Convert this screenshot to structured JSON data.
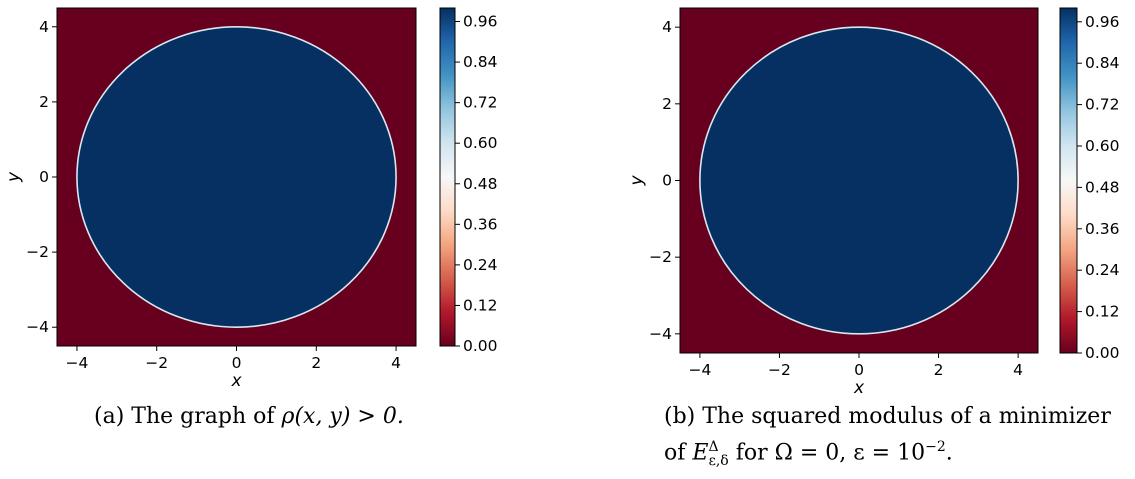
{
  "chart_data": [
    {
      "type": "heatmap",
      "title": "",
      "xlabel": "x",
      "ylabel": "y",
      "xlim": [
        -4.5,
        4.5
      ],
      "ylim": [
        -4.5,
        4.5
      ],
      "xticks": [
        "−4",
        "−2",
        "0",
        "2",
        "4"
      ],
      "yticks": [
        "4",
        "2",
        "0",
        "−2",
        "−4"
      ],
      "field": {
        "inside_radius": 4.0,
        "value_inside": 1.0,
        "value_outside": 0.0,
        "center": [
          0,
          0
        ]
      },
      "colorbar": {
        "colormap": "RdBu",
        "ticks": [
          "0.96",
          "0.84",
          "0.72",
          "0.60",
          "0.48",
          "0.36",
          "0.24",
          "0.12",
          "0.00"
        ],
        "range": [
          0.0,
          1.0
        ]
      },
      "caption_parts": {
        "tag": "(a)",
        "text": "The graph of",
        "math": "ρ(x, y) > 0."
      }
    },
    {
      "type": "heatmap",
      "title": "",
      "xlabel": "x",
      "ylabel": "y",
      "xlim": [
        -4.5,
        4.5
      ],
      "ylim": [
        -4.5,
        4.5
      ],
      "xticks": [
        "−4",
        "−2",
        "0",
        "2",
        "4"
      ],
      "yticks": [
        "4",
        "2",
        "0",
        "−2",
        "−4"
      ],
      "field": {
        "inside_radius": 4.0,
        "value_inside": 1.0,
        "value_outside": 0.0,
        "center": [
          0,
          0
        ]
      },
      "colorbar": {
        "colormap": "RdBu",
        "ticks": [
          "0.96",
          "0.84",
          "0.72",
          "0.60",
          "0.48",
          "0.36",
          "0.24",
          "0.12",
          "0.00"
        ],
        "range": [
          0.0,
          1.0
        ]
      },
      "caption_parts": {
        "tag": "(b)",
        "line1": "The squared modulus of a minimizer",
        "of": "of",
        "E": "E",
        "sup": "Δ",
        "sub": "ε,δ",
        "for": "for",
        "omega": "Ω = 0,",
        "eps": "ε = 10",
        "exp": "−2",
        "dot": "."
      }
    }
  ],
  "colors": {
    "outside": "#67001f",
    "inside": "#053061",
    "edge": "#d9e8f0"
  }
}
